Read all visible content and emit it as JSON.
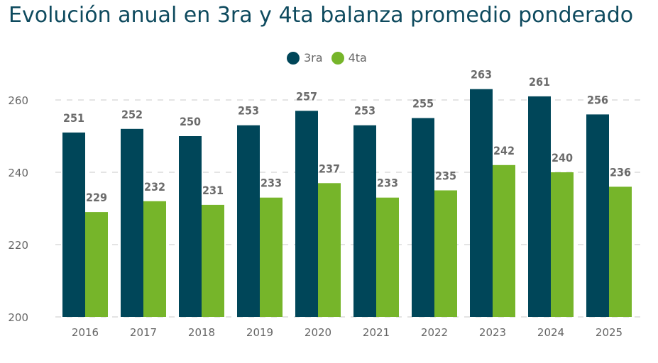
{
  "title": "Evolución anual en 3ra y 4ta balanza promedio ponderado",
  "colors": {
    "title": "#0e4a5e",
    "series_3ra": "#004659",
    "series_4ta": "#76b52a",
    "grid": "#dcdcdc",
    "text": "#666666"
  },
  "chart_data": {
    "type": "bar",
    "title": "Evolución anual en 3ra y 4ta balanza promedio ponderado",
    "xlabel": "",
    "ylabel": "",
    "categories": [
      "2016",
      "2017",
      "2018",
      "2019",
      "2020",
      "2021",
      "2022",
      "2023",
      "2024",
      "2025"
    ],
    "series": [
      {
        "name": "3ra",
        "color": "#004659",
        "values": [
          251,
          252,
          250,
          253,
          257,
          253,
          255,
          263,
          261,
          256
        ]
      },
      {
        "name": "4ta",
        "color": "#76b52a",
        "values": [
          229,
          232,
          231,
          233,
          237,
          233,
          235,
          242,
          240,
          236
        ]
      }
    ],
    "ylim": [
      200,
      263
    ],
    "yticks": [
      200,
      220,
      240,
      260
    ],
    "grid": true,
    "legend_position": "top-center"
  }
}
